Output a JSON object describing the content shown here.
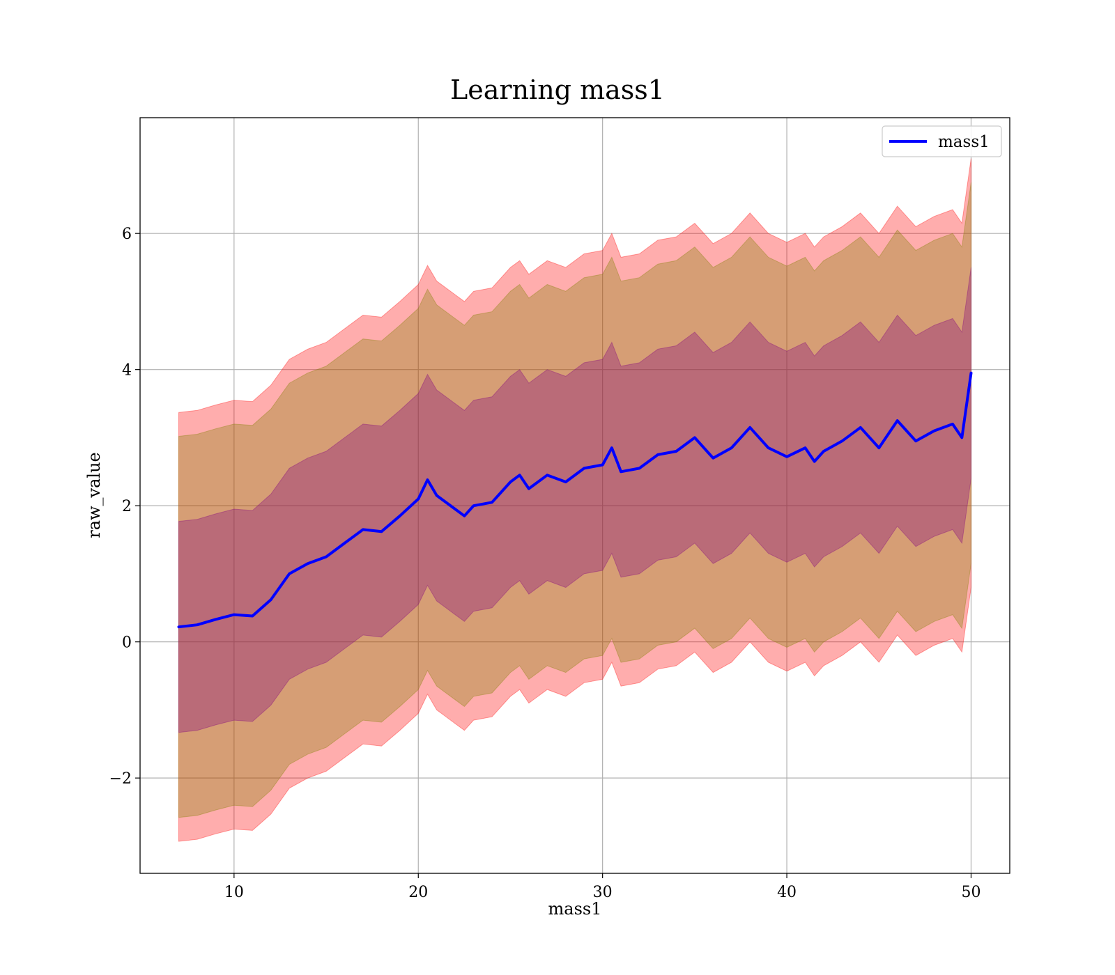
{
  "chart_data": {
    "type": "area",
    "title": "Learning mass1",
    "xlabel": "mass1",
    "ylabel": "raw_value",
    "xlim": [
      4.9,
      52.1
    ],
    "ylim": [
      -3.4,
      7.7
    ],
    "xticks": [
      10,
      20,
      30,
      40,
      50
    ],
    "xtick_labels": [
      "10",
      "20",
      "30",
      "40",
      "50"
    ],
    "yticks": [
      -2,
      0,
      2,
      4,
      6
    ],
    "ytick_labels": [
      "−2",
      "0",
      "2",
      "4",
      "6"
    ],
    "grid": true,
    "legend": {
      "position": "top-right",
      "entries": [
        "mass1"
      ]
    },
    "x": [
      7.0,
      8.0,
      9.0,
      10.0,
      11.0,
      12.0,
      13.0,
      14.0,
      15.0,
      16.0,
      17.0,
      18.0,
      19.0,
      20.0,
      20.5,
      21.0,
      22.0,
      22.5,
      23.0,
      24.0,
      25.0,
      25.5,
      26.0,
      27.0,
      28.0,
      29.0,
      30.0,
      30.5,
      31.0,
      32.0,
      33.0,
      34.0,
      35.0,
      36.0,
      37.0,
      38.0,
      39.0,
      40.0,
      41.0,
      41.5,
      42.0,
      43.0,
      44.0,
      45.0,
      46.0,
      47.0,
      48.0,
      49.0,
      49.5,
      50.0
    ],
    "series": [
      {
        "name": "mass1",
        "color": "#0000ff",
        "values": [
          0.22,
          0.25,
          0.33,
          0.4,
          0.38,
          0.62,
          1.0,
          1.15,
          1.25,
          1.45,
          1.65,
          1.62,
          1.85,
          2.1,
          2.38,
          2.15,
          1.95,
          1.85,
          2.0,
          2.05,
          2.35,
          2.45,
          2.25,
          2.45,
          2.35,
          2.55,
          2.6,
          2.85,
          2.5,
          2.55,
          2.75,
          2.8,
          3.0,
          2.7,
          2.85,
          3.15,
          2.85,
          2.72,
          2.85,
          2.65,
          2.8,
          2.95,
          3.15,
          2.85,
          3.25,
          2.95,
          3.1,
          3.2,
          3.0,
          3.95
        ]
      }
    ],
    "bands": [
      {
        "color": "#ff0000",
        "opacity": 0.32,
        "offset": 3.15
      },
      {
        "color": "#808000",
        "opacity": 0.32,
        "offset": 2.8
      },
      {
        "color": "#800080",
        "opacity": 0.32,
        "offset": 1.55
      }
    ]
  }
}
